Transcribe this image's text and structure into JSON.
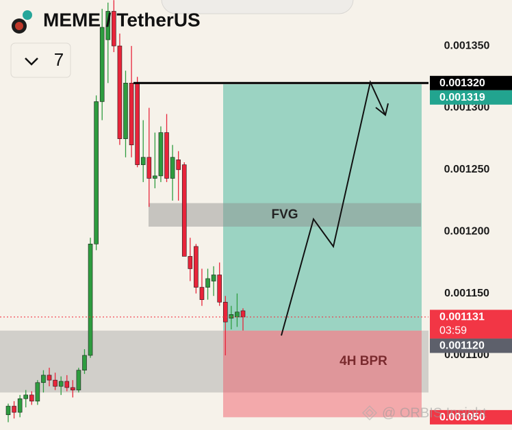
{
  "chart_data": {
    "type": "candlestick",
    "title": "MEME / TetherUS",
    "interval": "7",
    "ylim": [
      0.0010397,
      0.0013871
    ],
    "yticks": [
      {
        "value": 0.00135,
        "label": "0.001350"
      },
      {
        "value": 0.0013,
        "label": "0.001300"
      },
      {
        "value": 0.00125,
        "label": "0.001250"
      },
      {
        "value": 0.0012,
        "label": "0.001200"
      },
      {
        "value": 0.00115,
        "label": "0.001150"
      },
      {
        "value": 0.0011,
        "label": "0.001100"
      }
    ],
    "up_color": "#2e9c3f",
    "down_color": "#e8243a",
    "candles": {
      "open": [
        0.001052,
        0.001059,
        0.001054,
        0.001065,
        0.001068,
        0.001063,
        0.001078,
        0.001084,
        0.00108,
        0.001075,
        0.001079,
        0.001074,
        0.001072,
        0.001088,
        0.0011,
        0.00119,
        0.001305,
        0.001355,
        0.001378,
        0.00135,
        0.001275,
        0.00132,
        0.00132,
        0.001254,
        0.00126,
        0.001243,
        0.001245,
        0.00128,
        0.001243,
        0.001258,
        0.001254,
        0.00118,
        0.001188,
        0.001155,
        0.001155,
        0.00116,
        0.001165,
        0.001143,
        0.00113,
        0.001131,
        0.001136
      ],
      "high": [
        0.001061,
        0.001063,
        0.001068,
        0.001072,
        0.001071,
        0.00108,
        0.001088,
        0.00109,
        0.001086,
        0.001083,
        0.001084,
        0.00108,
        0.00109,
        0.001105,
        0.001195,
        0.00131,
        0.00138,
        0.001385,
        0.001387,
        0.00136,
        0.00133,
        0.00135,
        0.001325,
        0.00129,
        0.0013,
        0.00128,
        0.001285,
        0.001295,
        0.00127,
        0.001265,
        0.001256,
        0.001195,
        0.00119,
        0.00117,
        0.00117,
        0.001172,
        0.001175,
        0.001148,
        0.00114,
        0.00115,
        0.001138
      ],
      "low": [
        0.001046,
        0.001049,
        0.00105,
        0.001058,
        0.00106,
        0.00106,
        0.00107,
        0.001075,
        0.001072,
        0.001068,
        0.001071,
        0.001066,
        0.00107,
        0.001085,
        0.001098,
        0.001185,
        0.00129,
        0.00132,
        0.001345,
        0.00127,
        0.00126,
        0.00126,
        0.001252,
        0.00124,
        0.00122,
        0.001235,
        0.00124,
        0.00124,
        0.001225,
        0.001225,
        0.00118,
        0.00116,
        0.00115,
        0.00114,
        0.001145,
        0.001148,
        0.00114,
        0.0011,
        0.001121,
        0.001123,
        0.00112
      ],
      "close": [
        0.001059,
        0.001054,
        0.001065,
        0.001068,
        0.001063,
        0.001078,
        0.001084,
        0.00108,
        0.001075,
        0.001079,
        0.001074,
        0.001072,
        0.001088,
        0.0011,
        0.00119,
        0.001305,
        0.001365,
        0.001378,
        0.00135,
        0.001275,
        0.00132,
        0.00127,
        0.001254,
        0.00126,
        0.001243,
        0.001245,
        0.00128,
        0.001243,
        0.00126,
        0.00125,
        0.00118,
        0.00117,
        0.001155,
        0.001145,
        0.001162,
        0.001165,
        0.001143,
        0.001127,
        0.001133,
        0.001135,
        0.001131
      ]
    },
    "zones": [
      {
        "low": 0.00107,
        "high": 0.00112,
        "color": "rgba(150,150,150,0.38)",
        "label": "4H BPR"
      },
      {
        "low": 0.00112,
        "high": 0.001319,
        "color": "rgba(80,185,160,0.55)"
      },
      {
        "low": 0.00105,
        "high": 0.00112,
        "color": "rgba(240,80,95,0.45)"
      },
      {
        "low": 0.001204,
        "high": 0.001223,
        "color": "rgba(140,140,140,0.45)",
        "label": "FVG"
      }
    ],
    "level_line": {
      "value": 0.00132,
      "color": "#000000"
    },
    "last_price_line": {
      "value": 0.001131,
      "color": "#f23645"
    },
    "price_tags": [
      {
        "value": 0.00132,
        "label": "0.001320",
        "color": "#000000"
      },
      {
        "value": 0.001319,
        "label": "0.001319",
        "color": "#22a48f"
      },
      {
        "value": 0.001131,
        "label": "0.001131",
        "countdown": "03:59",
        "color": "#f23645"
      },
      {
        "value": 0.00112,
        "label": "0.001120",
        "color": "#5d606b"
      },
      {
        "value": 0.00105,
        "label": "0.001050",
        "color": "#f23645"
      }
    ],
    "watermark": "@ ORBIS Insight"
  }
}
